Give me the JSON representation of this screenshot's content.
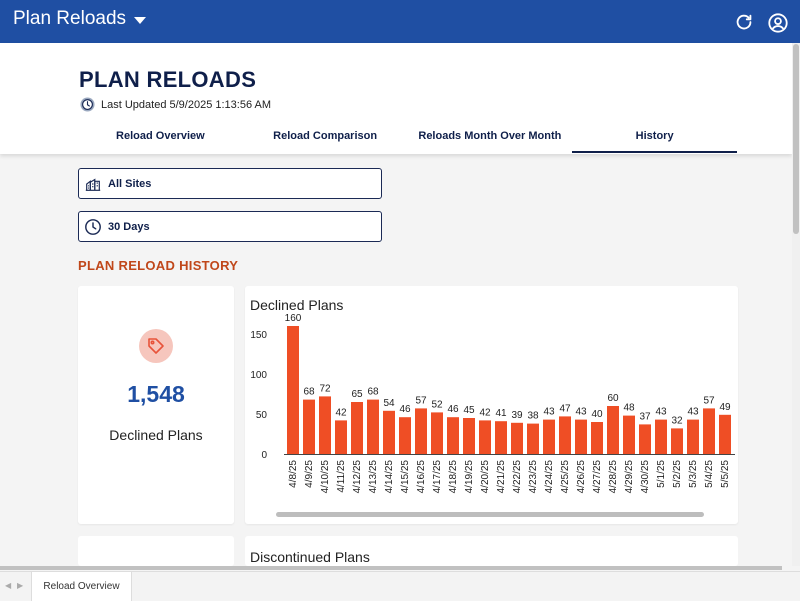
{
  "app": {
    "title": "Plan Reloads",
    "refresh_icon": "refresh-icon",
    "user_icon": "user-circle-icon"
  },
  "header": {
    "title": "PLAN RELOADS",
    "last_updated": "Last Updated 5/9/2025 1:13:56 AM",
    "tabs": [
      {
        "label": "Reload Overview",
        "active": false
      },
      {
        "label": "Reload Comparison",
        "active": false
      },
      {
        "label": "Reloads Month Over Month",
        "active": false
      },
      {
        "label": "History",
        "active": true
      }
    ]
  },
  "filters": {
    "sites": {
      "label": "All Sites",
      "icon": "sites-icon"
    },
    "days": {
      "label": "30 Days",
      "icon": "clock-icon"
    }
  },
  "section": {
    "heading": "PLAN RELOAD HISTORY"
  },
  "kpi": {
    "value": "1,548",
    "label": "Declined Plans",
    "icon": "tag-icon",
    "icon_bg": "#f6c6bd",
    "icon_color": "#e8533a"
  },
  "chart_data": {
    "type": "bar",
    "title": "Declined Plans",
    "categories": [
      "4/8/25",
      "4/9/25",
      "4/10/25",
      "4/11/25",
      "4/12/25",
      "4/13/25",
      "4/14/25",
      "4/15/25",
      "4/16/25",
      "4/17/25",
      "4/18/25",
      "4/19/25",
      "4/20/25",
      "4/21/25",
      "4/22/25",
      "4/23/25",
      "4/24/25",
      "4/25/25",
      "4/26/25",
      "4/27/25",
      "4/28/25",
      "4/29/25",
      "4/30/25",
      "5/1/25",
      "5/2/25",
      "5/3/25",
      "5/4/25",
      "5/5/25"
    ],
    "values": [
      160,
      68,
      72,
      42,
      65,
      68,
      54,
      46,
      57,
      52,
      46,
      45,
      42,
      41,
      39,
      38,
      43,
      47,
      43,
      40,
      60,
      48,
      37,
      43,
      32,
      43,
      57,
      49
    ],
    "yticks": [
      0,
      50,
      100,
      150
    ],
    "ylim": [
      0,
      175
    ],
    "bar_color": "#ef4e25"
  },
  "second_section": {
    "title": "Discontinued Plans"
  },
  "bottom": {
    "tab_label": "Reload Overview"
  }
}
